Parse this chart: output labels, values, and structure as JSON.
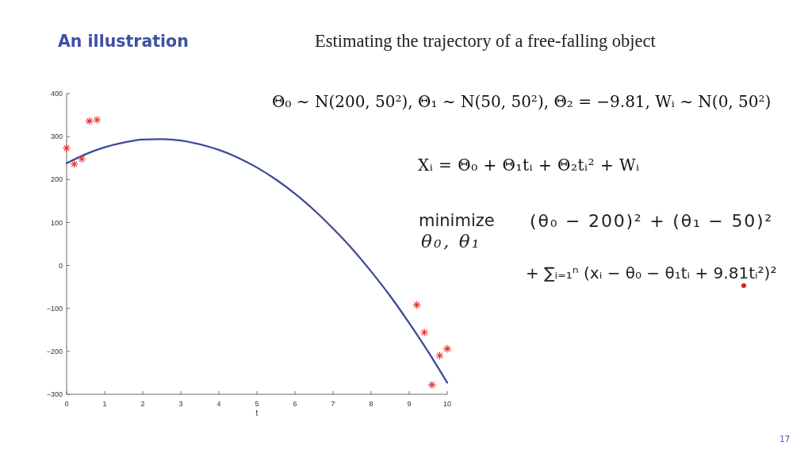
{
  "chart_data": {
    "type": "line",
    "title": "An illustration",
    "subtitle": "Estimating the trajectory of a free-falling object",
    "xlabel": "t",
    "xlim": [
      0,
      10
    ],
    "ylim": [
      -300,
      400
    ],
    "xticks": [
      0,
      1,
      2,
      3,
      4,
      5,
      6,
      7,
      8,
      9,
      10
    ],
    "yticks": [
      -300,
      -200,
      -100,
      0,
      100,
      200,
      300,
      400
    ],
    "series": [
      {
        "color": "#3d4a9b",
        "x": [
          0,
          0.5,
          1,
          1.5,
          2,
          2.5,
          3,
          3.5,
          4,
          4.5,
          5,
          5.5,
          6,
          6.5,
          7,
          7.5,
          8,
          8.5,
          9,
          9.5,
          10
        ],
        "values": [
          238,
          259,
          275,
          286,
          293,
          294,
          291,
          282,
          269,
          251,
          228,
          200,
          167,
          129,
          86,
          39,
          -14,
          -71,
          -134,
          -201,
          -273
        ]
      },
      {
        "type": "scatter",
        "color": "#e8302f",
        "marker": "cross",
        "x": [
          0,
          0.2,
          0.4,
          0.6,
          0.8,
          9.2,
          9.4,
          9.6,
          9.8,
          10
        ],
        "values": [
          273,
          236,
          248,
          336,
          339,
          -92,
          -156,
          -278,
          -210,
          -194
        ]
      }
    ],
    "annotations": [
      "Θ₀ ∼ N(200, 50²), Θ₁ ∼ N(50, 50²), Θ₂ = −9.81, Wᵢ ∼ N(0, 50²)",
      "Xᵢ = Θ₀ + Θ₁tᵢ + Θ₂tᵢ² + Wᵢ",
      "minimize",
      "θ₀, θ₁",
      "(θ₀ − 200)² + (θ₁ − 50)²",
      "+ ∑ᵢ₌₁ⁿ (xᵢ − θ₀ − θ₁tᵢ + 9.81tᵢ²)²",
      "17"
    ]
  }
}
